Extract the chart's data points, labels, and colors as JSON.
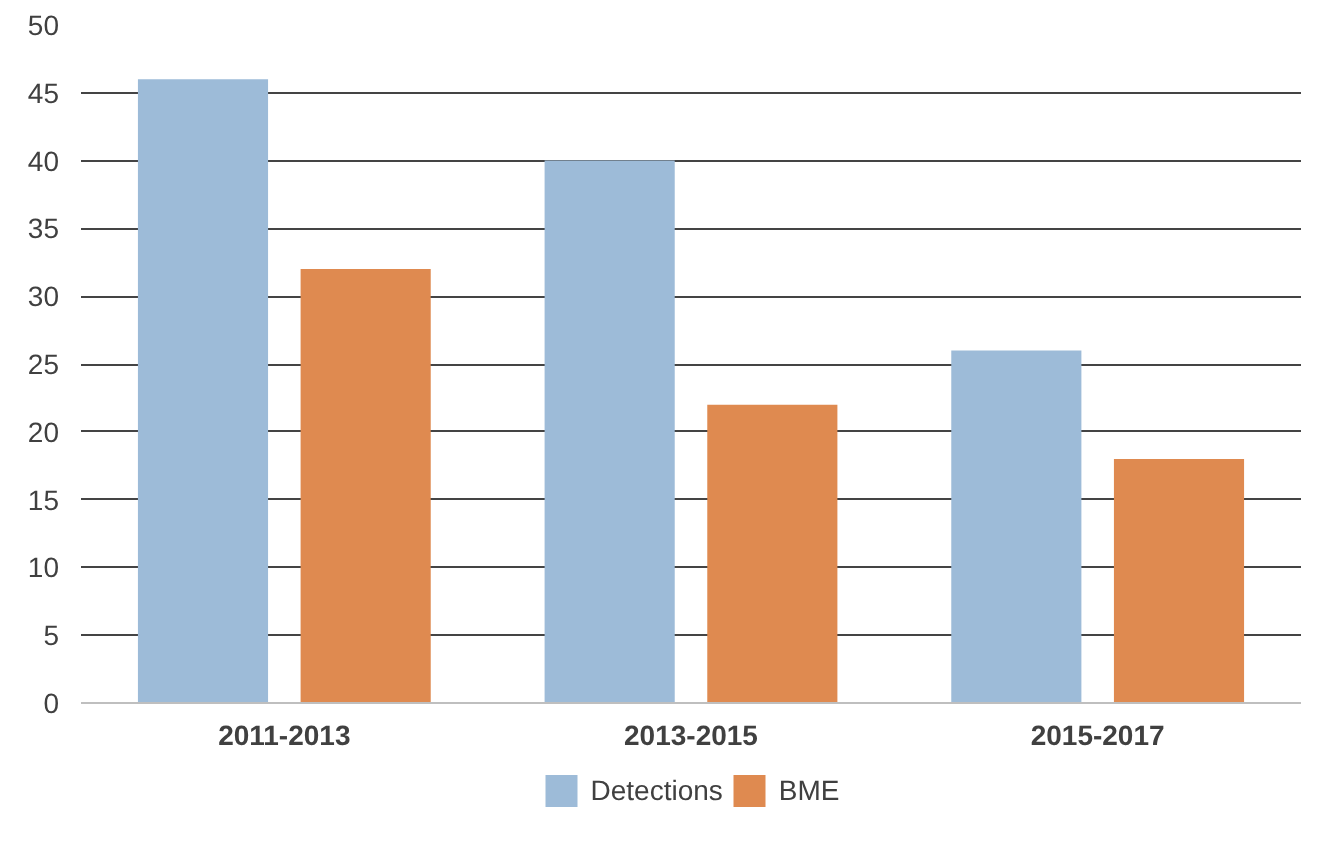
{
  "chart_data": {
    "type": "bar",
    "categories": [
      "2011-2013",
      "2013-2015",
      "2015-2017"
    ],
    "series": [
      {
        "name": "Detections",
        "color": "#9dbbd8",
        "values": [
          46,
          40,
          26
        ]
      },
      {
        "name": "BME",
        "color": "#df8a50",
        "values": [
          32,
          22,
          18
        ]
      }
    ],
    "ylim": [
      0,
      50
    ],
    "yticks": [
      0,
      5,
      10,
      15,
      20,
      25,
      30,
      35,
      40,
      45,
      50
    ],
    "grid": "y",
    "legend": "bottom"
  }
}
